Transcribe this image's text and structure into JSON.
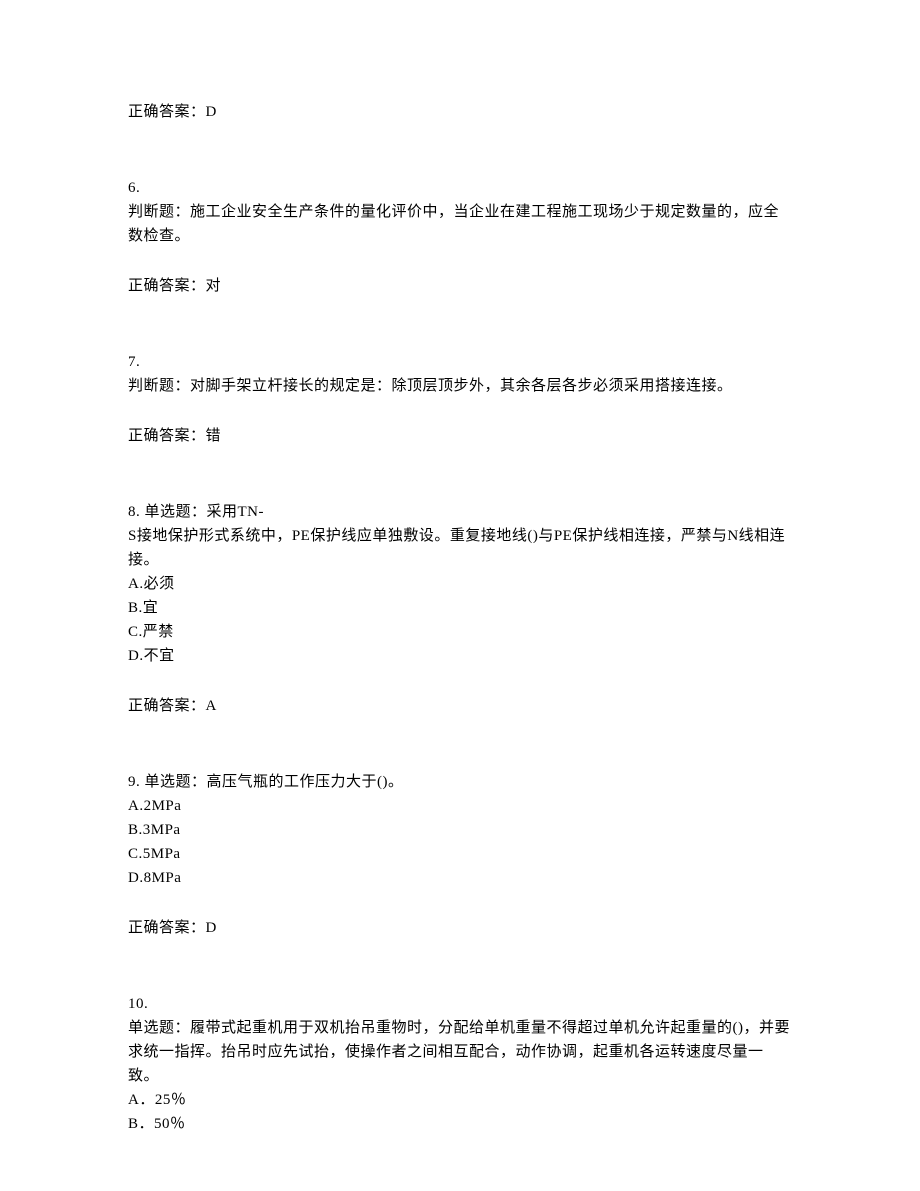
{
  "q5_answer": "正确答案：D",
  "q6": {
    "num": "6.",
    "text": "判断题：施工企业安全生产条件的量化评价中，当企业在建工程施工现场少于规定数量的，应全数检查。",
    "answer": "正确答案：对"
  },
  "q7": {
    "num": "7.",
    "text": "判断题：对脚手架立杆接长的规定是：除顶层顶步外，其余各层各步必须采用搭接连接。",
    "answer": "正确答案：错"
  },
  "q8": {
    "num": "8. 单选题：采用TN-",
    "text": "S接地保护形式系统中，PE保护线应单独敷设。重复接地线()与PE保护线相连接，严禁与N线相连接。",
    "optA": "A.必须",
    "optB": "B.宜",
    "optC": "C.严禁",
    "optD": "D.不宜",
    "answer": "正确答案：A"
  },
  "q9": {
    "num": "9. 单选题：高压气瓶的工作压力大于()。",
    "optA": "A.2MPa",
    "optB": "B.3MPa",
    "optC": "C.5MPa",
    "optD": "D.8MPa",
    "answer": "正确答案：D"
  },
  "q10": {
    "num": "10.",
    "text": "单选题：履带式起重机用于双机抬吊重物时，分配给单机重量不得超过单机允许起重量的()，并要求统一指挥。抬吊时应先试抬，使操作者之间相互配合，动作协调，起重机各运转速度尽量一致。",
    "optA": "A．25％",
    "optB": "B．50％"
  }
}
